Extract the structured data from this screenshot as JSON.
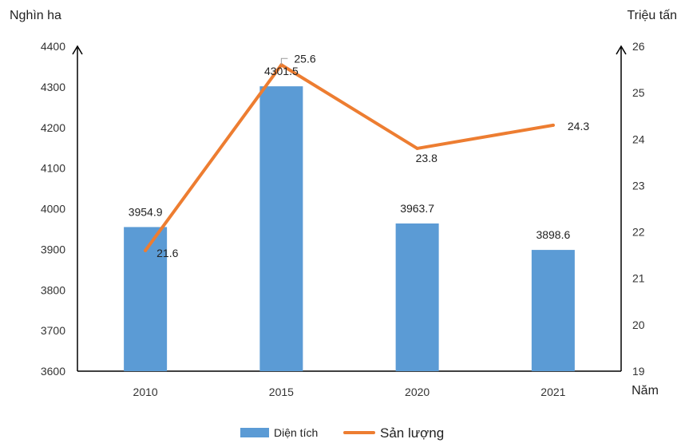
{
  "chart_data": {
    "type": "bar+line",
    "title": "",
    "categories": [
      "2010",
      "2015",
      "2020",
      "2021"
    ],
    "xlabel": "Năm",
    "y_left": {
      "label": "Nghìn ha",
      "lim": [
        3600,
        4400
      ],
      "ticks": [
        3600,
        3700,
        3800,
        3900,
        4000,
        4100,
        4200,
        4300,
        4400
      ]
    },
    "y_right": {
      "label": "Triệu tấn",
      "lim": [
        19,
        26
      ],
      "ticks": [
        19,
        20,
        21,
        22,
        23,
        24,
        25,
        26
      ]
    },
    "series": [
      {
        "name": "Diện tích",
        "type": "bar",
        "axis": "left",
        "color": "#5b9bd5",
        "values": [
          3954.9,
          4301.5,
          3963.7,
          3898.6
        ],
        "labels": [
          "3954.9",
          "4301.5",
          "3963.7",
          "3898.6"
        ]
      },
      {
        "name": "Sản lượng",
        "type": "line",
        "axis": "right",
        "color": "#ed7d31",
        "values": [
          21.6,
          25.6,
          23.8,
          24.3
        ],
        "labels": [
          "21.6",
          "25.6",
          "23.8",
          "24.3"
        ]
      }
    ],
    "grid": false,
    "legend_position": "bottom"
  }
}
